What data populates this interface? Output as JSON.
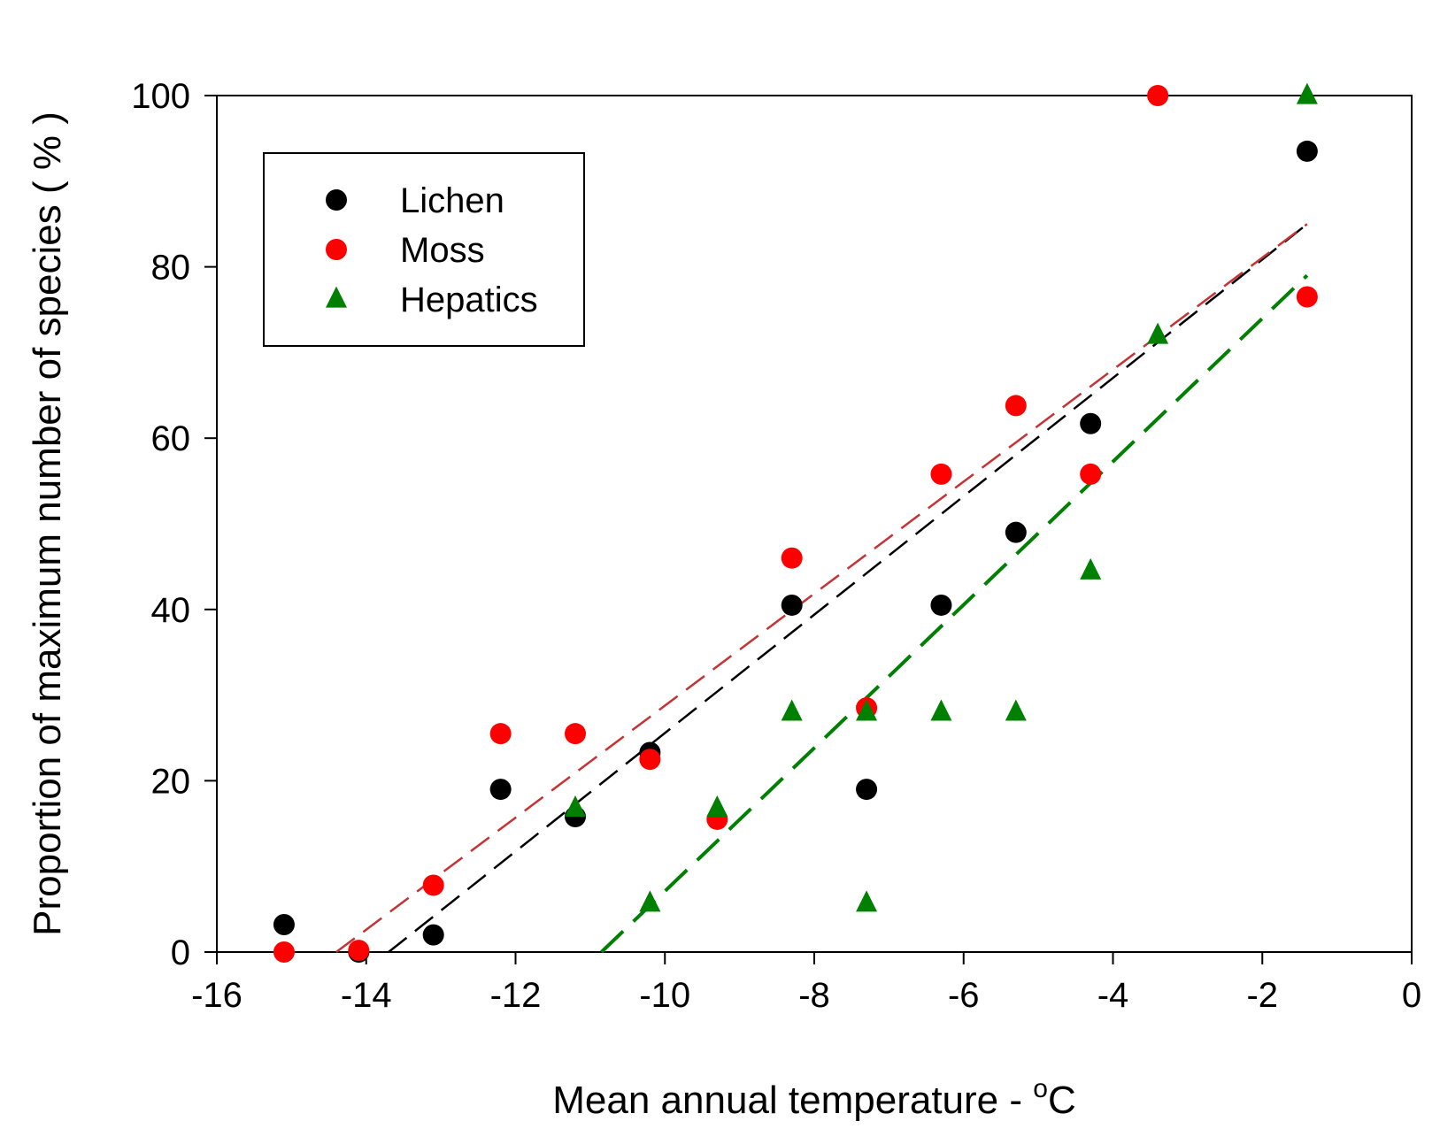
{
  "chart_data": {
    "type": "scatter",
    "xlabel": "Mean annual temperature - ",
    "xlabel_unit": "C",
    "xlabel_degree": "o",
    "ylabel": "Proportion of maximum number of species ( % )",
    "xlim": [
      -16,
      0
    ],
    "ylim": [
      0,
      100
    ],
    "xticks": [
      -16,
      -14,
      -12,
      -10,
      -8,
      -6,
      -4,
      -2,
      0
    ],
    "yticks": [
      0,
      20,
      40,
      60,
      80,
      100
    ],
    "legend": {
      "position": "top-left"
    },
    "series": [
      {
        "name": "Lichen",
        "color": "#000000",
        "marker": "circle",
        "points": [
          [
            -15.1,
            3.2
          ],
          [
            -14.1,
            0
          ],
          [
            -13.1,
            2
          ],
          [
            -12.2,
            19
          ],
          [
            -11.2,
            15.8
          ],
          [
            -10.2,
            23.3
          ],
          [
            -8.3,
            40.5
          ],
          [
            -7.3,
            19
          ],
          [
            -6.3,
            40.5
          ],
          [
            -5.3,
            49
          ],
          [
            -4.3,
            61.7
          ],
          [
            -1.4,
            93.5
          ]
        ],
        "fit": {
          "x": [
            -13.7,
            -1.4
          ],
          "y": [
            0,
            85
          ]
        }
      },
      {
        "name": "Moss",
        "color": "#ff0000",
        "line_color": "#c83232",
        "marker": "circle",
        "points": [
          [
            -15.1,
            0
          ],
          [
            -14.1,
            0.2
          ],
          [
            -13.1,
            7.8
          ],
          [
            -12.2,
            25.5
          ],
          [
            -11.2,
            25.5
          ],
          [
            -10.2,
            22.5
          ],
          [
            -9.3,
            15.5
          ],
          [
            -8.3,
            46
          ],
          [
            -7.3,
            28.5
          ],
          [
            -6.3,
            55.8
          ],
          [
            -5.3,
            63.8
          ],
          [
            -4.3,
            55.8
          ],
          [
            -3.4,
            100
          ],
          [
            -1.4,
            76.5
          ]
        ],
        "fit": {
          "x": [
            -14.4,
            -1.4
          ],
          "y": [
            0,
            85
          ]
        }
      },
      {
        "name": "Hepatics",
        "color": "#008000",
        "marker": "triangle",
        "points": [
          [
            -11.2,
            16.8
          ],
          [
            -10.2,
            5.7
          ],
          [
            -9.3,
            16.8
          ],
          [
            -8.3,
            28
          ],
          [
            -7.3,
            28
          ],
          [
            -7.3,
            5.7
          ],
          [
            -6.3,
            28
          ],
          [
            -5.3,
            28
          ],
          [
            -4.3,
            44.5
          ],
          [
            -3.4,
            72
          ],
          [
            -1.4,
            100
          ]
        ],
        "fit": {
          "x": [
            -10.85,
            -1.4
          ],
          "y": [
            0,
            79
          ]
        }
      }
    ]
  }
}
